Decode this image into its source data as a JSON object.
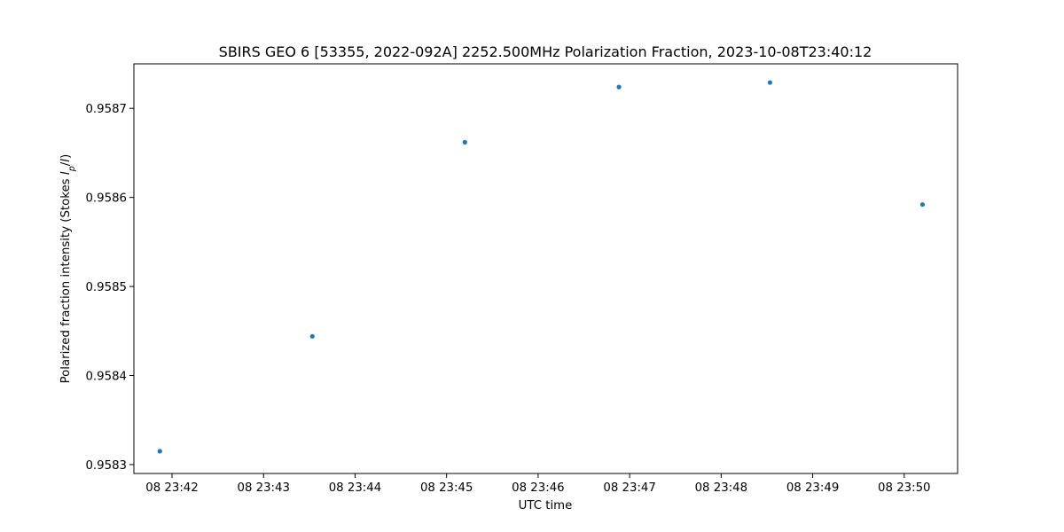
{
  "chart_data": {
    "type": "scatter",
    "title": "SBIRS GEO 6 [53355, 2022-092A] 2252.500MHz Polarization Fraction, 2023-10-08T23:40:12",
    "xlabel": "UTC time",
    "ylabel": "Polarized fraction intensity (Stokes Ip/I)",
    "ylabel_parts": {
      "prefix": "Polarized fraction intensity (Stokes ",
      "italic_main": "I",
      "subscript": "p",
      "slash": "/",
      "italic_end": "I",
      "suffix": ")"
    },
    "x_is_time": true,
    "xlim": [
      "2023-10-08T23:41:35",
      "2023-10-08T23:50:35"
    ],
    "ylim": [
      0.95829,
      0.95875
    ],
    "x_ticks": [
      {
        "t": "2023-10-08T23:42:00",
        "label": "08 23:42"
      },
      {
        "t": "2023-10-08T23:43:00",
        "label": "08 23:43"
      },
      {
        "t": "2023-10-08T23:44:00",
        "label": "08 23:44"
      },
      {
        "t": "2023-10-08T23:45:00",
        "label": "08 23:45"
      },
      {
        "t": "2023-10-08T23:46:00",
        "label": "08 23:46"
      },
      {
        "t": "2023-10-08T23:47:00",
        "label": "08 23:47"
      },
      {
        "t": "2023-10-08T23:48:00",
        "label": "08 23:48"
      },
      {
        "t": "2023-10-08T23:49:00",
        "label": "08 23:49"
      },
      {
        "t": "2023-10-08T23:50:00",
        "label": "08 23:50"
      }
    ],
    "y_ticks": [
      {
        "v": 0.9583,
        "label": "0.9583"
      },
      {
        "v": 0.9584,
        "label": "0.9584"
      },
      {
        "v": 0.9585,
        "label": "0.9585"
      },
      {
        "v": 0.9586,
        "label": "0.9586"
      },
      {
        "v": 0.9587,
        "label": "0.9587"
      }
    ],
    "series": [
      {
        "color": "#1f77b4",
        "points": [
          {
            "x": "2023-10-08T23:41:52",
            "y": 0.958315
          },
          {
            "x": "2023-10-08T23:43:32",
            "y": 0.958444
          },
          {
            "x": "2023-10-08T23:45:12",
            "y": 0.958662
          },
          {
            "x": "2023-10-08T23:46:53",
            "y": 0.958724
          },
          {
            "x": "2023-10-08T23:48:32",
            "y": 0.958729
          },
          {
            "x": "2023-10-08T23:50:12",
            "y": 0.958592
          }
        ]
      }
    ],
    "grid": false,
    "legend": "none"
  }
}
